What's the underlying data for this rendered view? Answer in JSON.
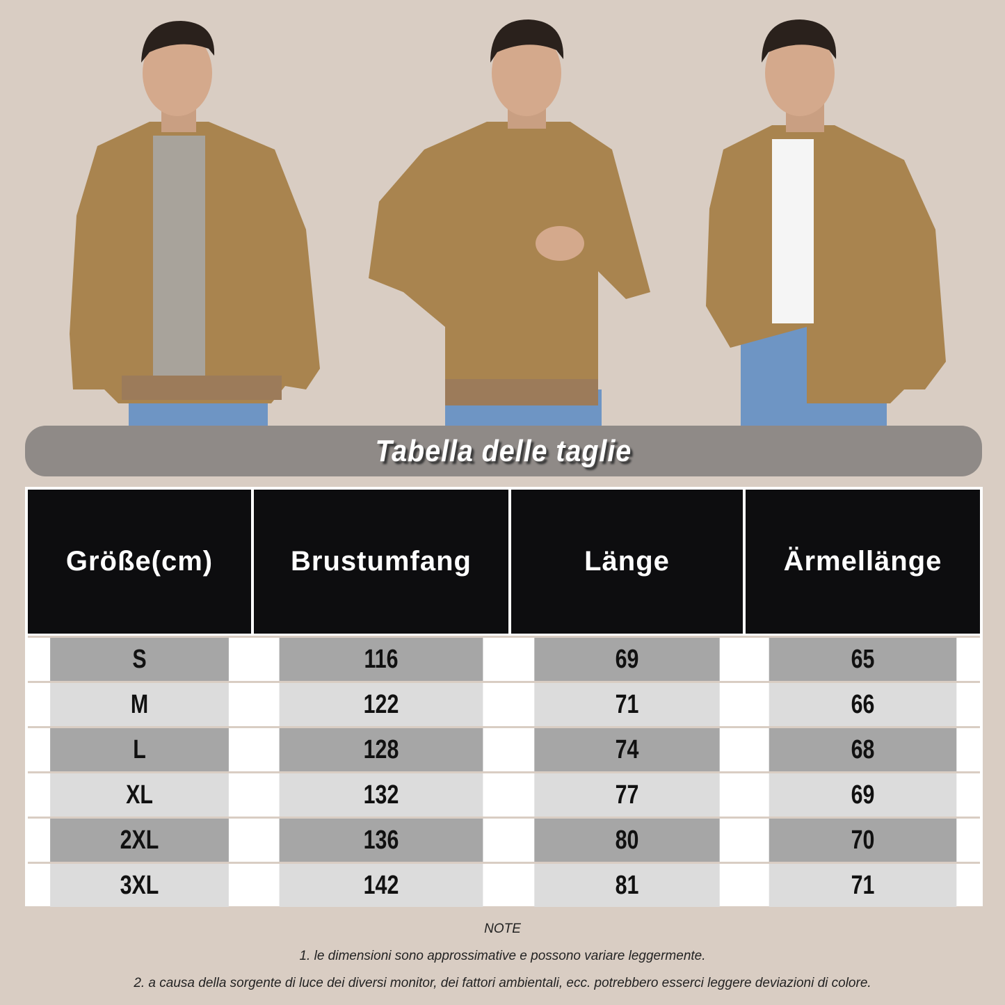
{
  "title": "Tabella delle taglie",
  "colors": {
    "background": "#d9cdc3",
    "title_bar": "#8f8a87",
    "header": "#0d0d0f",
    "row_dark": "#a6a6a6",
    "row_light": "#dcdcdc",
    "jacket": "#a9844f"
  },
  "table": {
    "headers": [
      "Größe(cm)",
      "Brustumfang",
      "Länge",
      "Ärmellänge"
    ],
    "rows": [
      [
        "S",
        "116",
        "69",
        "65"
      ],
      [
        "M",
        "122",
        "71",
        "66"
      ],
      [
        "L",
        "128",
        "74",
        "68"
      ],
      [
        "XL",
        "132",
        "77",
        "69"
      ],
      [
        "2XL",
        "136",
        "80",
        "70"
      ],
      [
        "3XL",
        "142",
        "81",
        "71"
      ]
    ]
  },
  "notes": {
    "heading": "NOTE",
    "lines": [
      "1. le dimensioni sono approssimative e possono variare leggermente.",
      "2. a causa della sorgente di luce dei diversi monitor, dei fattori ambientali, ecc. potrebbero esserci leggere deviazioni di colore."
    ]
  }
}
